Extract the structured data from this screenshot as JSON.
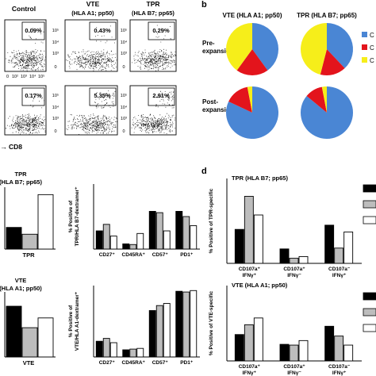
{
  "panel_b_letter": "b",
  "panel_d_letter": "d",
  "flow": {
    "col_titles": [
      "Control",
      "VTE",
      "(HLA A1; pp50)",
      "TPR",
      "(HLA B7; pp65)"
    ],
    "gates": [
      "0.09%",
      "0.43%",
      "0.29%",
      "0.17%",
      "5.35%",
      "2.91%"
    ],
    "ytick": [
      "10⁵",
      "10⁴",
      "10³",
      "0"
    ],
    "xtick": [
      "0",
      "10²",
      "10³",
      "10⁴",
      "10⁵"
    ],
    "xlabel": "CD8"
  },
  "pies": {
    "col_titles": [
      "VTE (HLA A1; pp50)",
      "TPR (HLA B7; pp65)"
    ],
    "row_titles": [
      "Pre-",
      "expansion",
      "Post-",
      "expansion"
    ],
    "legend_labels": [
      "C",
      "C",
      "C"
    ],
    "colors": [
      "#4a86d4",
      "#e3141c",
      "#f6ee1a"
    ]
  },
  "chart_data": [
    {
      "type": "bar",
      "title": "TPR (HLA B7; pp65)",
      "categories": [
        "TPR"
      ],
      "series_values": [
        0.35,
        0.24,
        0.88
      ],
      "ylim": [
        0,
        1
      ]
    },
    {
      "type": "bar",
      "ylabel_lines": [
        "% Positive of",
        "TPR/HLA B7-dextramer⁺"
      ],
      "categories": [
        "CD27⁺",
        "CD45RA⁺",
        "CD57⁺",
        "PD1⁺"
      ],
      "series": [
        {
          "values": [
            28,
            8,
            58,
            58
          ]
        },
        {
          "values": [
            38,
            7,
            56,
            50
          ]
        },
        {
          "values": [
            20,
            24,
            28,
            36
          ]
        }
      ],
      "ylim": [
        0,
        100
      ]
    },
    {
      "type": "bar",
      "title": "VTE (HLA A1; pp50)",
      "categories": [
        "VTE"
      ],
      "series_values": [
        0.78,
        0.45,
        0.6
      ],
      "ylim": [
        0,
        1
      ]
    },
    {
      "type": "bar",
      "ylabel_lines": [
        "% Positive of",
        "VTE/HLA A1-dextramer⁺"
      ],
      "categories": [
        "CD27⁺",
        "CD45RA⁺",
        "CD57⁺",
        "PD1⁺"
      ],
      "series": [
        {
          "values": [
            22,
            10,
            65,
            92
          ]
        },
        {
          "values": [
            26,
            11,
            72,
            91
          ]
        },
        {
          "values": [
            20,
            12,
            75,
            93
          ]
        }
      ],
      "ylim": [
        0,
        100
      ]
    },
    {
      "type": "bar",
      "title": "TPR (HLA B7; pp65)",
      "ylabel_lines": [
        "% Positive of TPR-specific"
      ],
      "categories": [
        "CD107a⁺ IFNγ⁺",
        "CD107a⁺ IFNγ⁻",
        "CD107a⁻ IFNγ⁺"
      ],
      "series": [
        {
          "values": [
            40,
            17,
            45
          ]
        },
        {
          "values": [
            79,
            6,
            18
          ]
        },
        {
          "values": [
            57,
            8,
            37
          ]
        }
      ],
      "ylim": [
        0,
        100
      ]
    },
    {
      "type": "bar",
      "title": "VTE (HLA A1; pp50)",
      "ylabel_lines": [
        "% Positive of VTE-specific"
      ],
      "categories": [
        "CD107a⁺ IFNγ⁺",
        "CD107a⁺ IFNγ⁻",
        "CD107a⁻ IFNγ⁺"
      ],
      "series": [
        {
          "values": [
            35,
            22,
            46
          ]
        },
        {
          "values": [
            48,
            21,
            33
          ]
        },
        {
          "values": [
            57,
            27,
            21
          ]
        }
      ],
      "ylim": [
        0,
        100
      ]
    }
  ],
  "series_fills": [
    "#000000",
    "#bdbdbd",
    "#ffffff"
  ]
}
